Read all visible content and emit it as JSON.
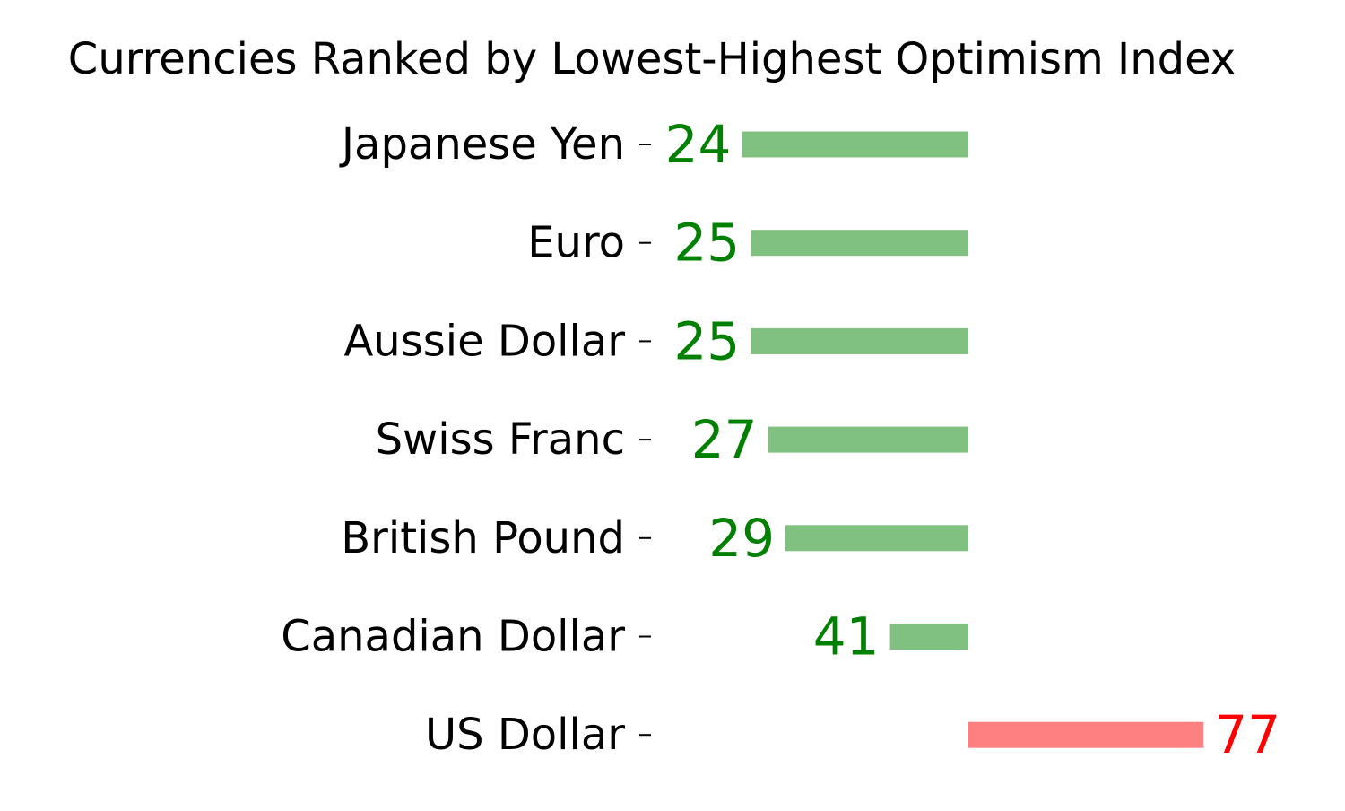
{
  "chart_data": {
    "type": "bar",
    "orientation": "horizontal",
    "title": "Currencies Ranked by Lowest-Highest Optimism Index",
    "xlabel": "",
    "ylabel": "",
    "baseline": 50,
    "xlim": [
      15,
      85
    ],
    "grid": false,
    "categories": [
      "Japanese Yen",
      "Euro",
      "Aussie Dollar",
      "Swiss Franc",
      "British Pound",
      "Canadian Dollar",
      "US Dollar"
    ],
    "values": [
      24,
      25,
      25,
      27,
      29,
      41,
      77
    ],
    "colors": {
      "below_baseline_bar": "#80c080",
      "below_baseline_label": "#008000",
      "above_baseline_bar": "#ff8080",
      "above_baseline_label": "#ff0000",
      "text": "#000000"
    }
  }
}
